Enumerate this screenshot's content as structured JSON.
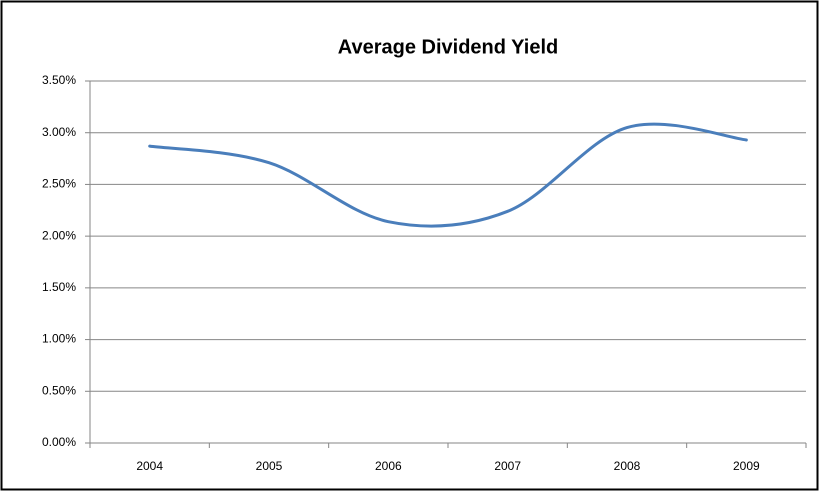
{
  "chart_data": {
    "type": "line",
    "title": "Average Dividend Yield",
    "categories": [
      "2004",
      "2005",
      "2006",
      "2007",
      "2008",
      "2009"
    ],
    "values": [
      2.87,
      2.71,
      2.14,
      2.24,
      3.05,
      2.93
    ],
    "color": "#4a7ebb",
    "smooth": true,
    "ylim": [
      0,
      3.5
    ],
    "yticks": [
      {
        "value": 0,
        "label": "0.00%"
      },
      {
        "value": 0.5,
        "label": "0.50%"
      },
      {
        "value": 1,
        "label": "1.00%"
      },
      {
        "value": 1.5,
        "label": "1.50%"
      },
      {
        "value": 2,
        "label": "2.00%"
      },
      {
        "value": 2.5,
        "label": "2.50%"
      },
      {
        "value": 3,
        "label": "3.00%"
      },
      {
        "value": 3.5,
        "label": "3.50%"
      }
    ],
    "grid": true
  }
}
